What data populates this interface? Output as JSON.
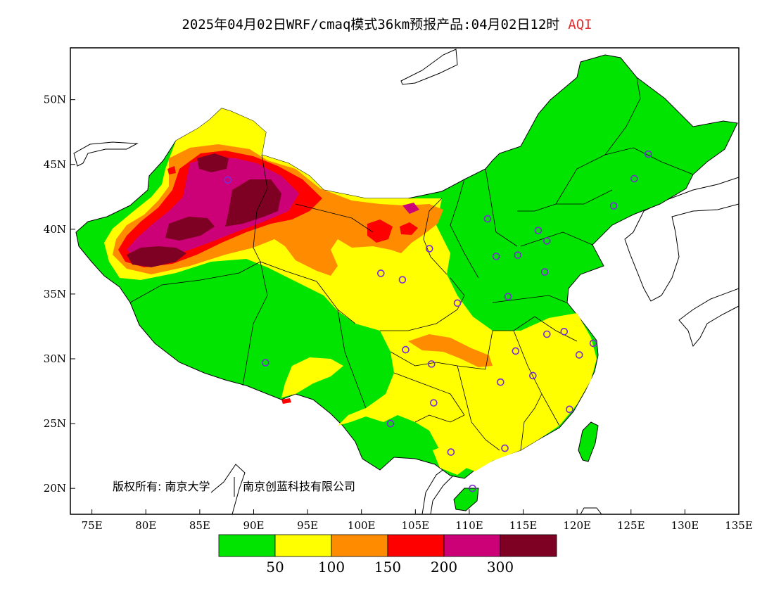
{
  "title": {
    "text": "2025年04月02日WRF/cmaq模式36km预报产品:04月02日12时",
    "variable": "AQI",
    "variable_color": "#e23030"
  },
  "axes": {
    "lat_ticks": [
      "50N",
      "45N",
      "40N",
      "35N",
      "30N",
      "25N",
      "20N"
    ],
    "lon_ticks": [
      "75E",
      "80E",
      "85E",
      "90E",
      "95E",
      "100E",
      "105E",
      "110E",
      "115E",
      "120E",
      "125E",
      "130E",
      "135E"
    ],
    "lon_range": [
      73,
      135
    ],
    "lat_range": [
      18,
      54
    ]
  },
  "copyright": {
    "part1": "版权所有: 南京大学",
    "part2": "南京创蓝科技有限公司"
  },
  "legend": {
    "colors": [
      "#00e400",
      "#ffff00",
      "#ff8c00",
      "#ff0000",
      "#cc0077",
      "#7e0023"
    ],
    "labels": [
      "50",
      "100",
      "150",
      "200",
      "300"
    ]
  },
  "stations": [
    [
      87.6,
      43.8
    ],
    [
      103.8,
      36.1
    ],
    [
      101.8,
      36.6
    ],
    [
      106.3,
      38.5
    ],
    [
      111.7,
      40.8
    ],
    [
      112.5,
      37.9
    ],
    [
      114.5,
      38.0
    ],
    [
      116.4,
      39.9
    ],
    [
      117.2,
      39.1
    ],
    [
      123.4,
      41.8
    ],
    [
      125.3,
      43.9
    ],
    [
      126.6,
      45.8
    ],
    [
      117.0,
      36.7
    ],
    [
      113.6,
      34.8
    ],
    [
      108.9,
      34.3
    ],
    [
      117.2,
      31.9
    ],
    [
      118.8,
      32.1
    ],
    [
      121.5,
      31.2
    ],
    [
      120.2,
      30.3
    ],
    [
      114.3,
      30.6
    ],
    [
      112.9,
      28.2
    ],
    [
      115.9,
      28.7
    ],
    [
      119.3,
      26.1
    ],
    [
      113.3,
      23.1
    ],
    [
      108.3,
      22.8
    ],
    [
      110.3,
      20.0
    ],
    [
      106.7,
      26.6
    ],
    [
      102.7,
      25.0
    ],
    [
      104.1,
      30.7
    ],
    [
      106.5,
      29.6
    ],
    [
      91.1,
      29.7
    ]
  ]
}
